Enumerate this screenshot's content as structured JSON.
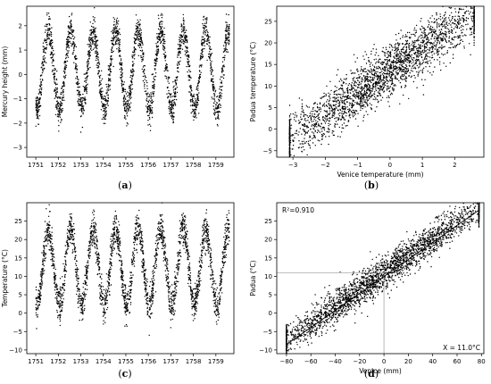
{
  "chart_data": [
    {
      "id": "a",
      "panel_label": "a",
      "type": "scatter",
      "xlabel": "",
      "ylabel": "Mercury height (mm)",
      "xlim": [
        1750.6,
        1759.8
      ],
      "ylim": [
        -3.4,
        2.8
      ],
      "xticks": [
        1751,
        1752,
        1753,
        1754,
        1755,
        1756,
        1757,
        1758,
        1759
      ],
      "yticks": [
        -3,
        -2,
        -1,
        0,
        1,
        2
      ],
      "series_model": {
        "kind": "seasonal",
        "start_year": 1751.0,
        "end_year": 1759.6,
        "mean": 0.2,
        "amplitude": 1.6,
        "noise": 0.35,
        "n": 2600
      }
    },
    {
      "id": "b",
      "panel_label": "b",
      "type": "scatter",
      "xlabel": "Venice temperature (mm)",
      "ylabel": "Padua temperature (°C)",
      "xlim": [
        -3.5,
        2.9
      ],
      "ylim": [
        -6.5,
        28.5
      ],
      "xticks": [
        -3,
        -2,
        -1,
        0,
        1,
        2
      ],
      "yticks": [
        -5,
        0,
        5,
        10,
        15,
        20,
        25
      ],
      "series_model": {
        "kind": "linear",
        "x_min": -3.1,
        "x_max": 2.6,
        "slope": 5.2,
        "intercept": 13.6,
        "noise": 3.0,
        "n": 2600
      }
    },
    {
      "id": "c",
      "panel_label": "c",
      "type": "scatter",
      "xlabel": "",
      "ylabel": "Temperature (°C)",
      "xlim": [
        1750.6,
        1759.8
      ],
      "ylim": [
        -11,
        30
      ],
      "xticks": [
        1751,
        1752,
        1753,
        1754,
        1755,
        1756,
        1757,
        1758,
        1759
      ],
      "yticks": [
        -10,
        -5,
        0,
        5,
        10,
        15,
        20,
        25
      ],
      "series_model": {
        "kind": "seasonal",
        "start_year": 1751.0,
        "end_year": 1759.6,
        "mean": 12.5,
        "amplitude": 10.5,
        "noise": 2.4,
        "n": 2600
      }
    },
    {
      "id": "d",
      "panel_label": "d",
      "type": "scatter",
      "xlabel": "Venice (mm)",
      "ylabel": "Padua (°C)",
      "xlim": [
        -88,
        82
      ],
      "ylim": [
        -11,
        30
      ],
      "xticks": [
        -80,
        -60,
        -40,
        -20,
        0,
        20,
        40,
        60,
        80
      ],
      "yticks": [
        -10,
        -5,
        0,
        5,
        10,
        15,
        20,
        25
      ],
      "annotation_r2": "R²=0.910",
      "annotation_x": "X = 11.0°C",
      "fit_line": {
        "x0": -80,
        "y0": -8.5,
        "x1": 78,
        "y1": 28.0
      },
      "reference": {
        "x": 0,
        "y": 11.0
      },
      "series_model": {
        "kind": "linear",
        "x_min": -80,
        "x_max": 78,
        "slope": 0.23,
        "intercept": 10.8,
        "noise": 2.3,
        "n": 2600
      }
    }
  ]
}
